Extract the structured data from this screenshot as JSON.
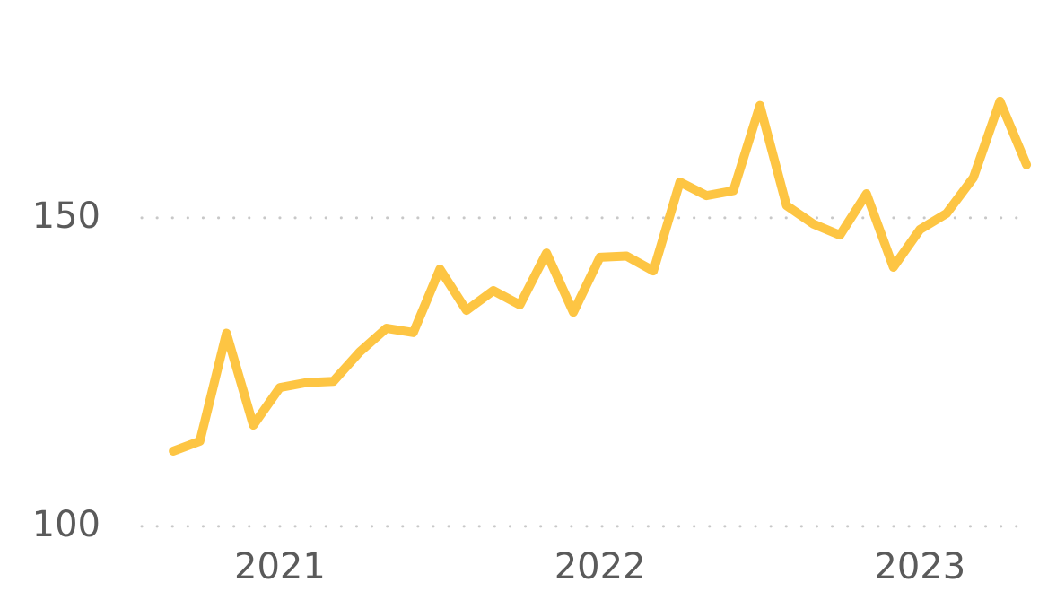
{
  "chart_data": {
    "type": "line",
    "x": [
      2020.667,
      2020.75,
      2020.833,
      2020.917,
      2021,
      2021.083,
      2021.167,
      2021.25,
      2021.333,
      2021.417,
      2021.5,
      2021.583,
      2021.667,
      2021.75,
      2021.833,
      2021.917,
      2022,
      2022.083,
      2022.167,
      2022.25,
      2022.333,
      2022.417,
      2022.5,
      2022.583,
      2022.667,
      2022.75,
      2022.833,
      2022.917,
      2023,
      2023.083,
      2023.167,
      2023.25,
      2023.333
    ],
    "series": [
      {
        "color": "#fdc543",
        "values": [
          112.2,
          113.8,
          131.3,
          116.4,
          122.5,
          123.3,
          123.5,
          128.3,
          132.1,
          131.4,
          141.7,
          135.0,
          138.2,
          135.9,
          144.3,
          134.7,
          143.6,
          143.8,
          141.4,
          155.8,
          153.6,
          154.4,
          168.2,
          152.0,
          149.0,
          147.2,
          153.9,
          142.0,
          148.1,
          150.7,
          156.5,
          168.9,
          158.6
        ]
      }
    ],
    "xlim": [
      2020.56,
      2023.33
    ],
    "xticks": [
      2021,
      2022,
      2023
    ],
    "ylim": [
      98.1,
      185.3
    ],
    "yticks": [
      100,
      150
    ],
    "grid": true
  }
}
